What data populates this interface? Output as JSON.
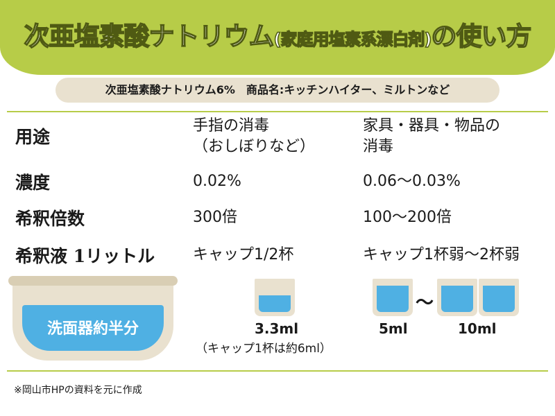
{
  "title": {
    "main": "次亜塩素酸ナトリウム",
    "paren": "(家庭用塩素系漂白剤)",
    "tail": "の使い方"
  },
  "subtitle": "次亜塩素酸ナトリウム6%　商品名:キッチンハイター、ミルトンなど",
  "rows": [
    {
      "label": "用途",
      "col1": "手指の消毒\n（おしぼりなど）",
      "col2": "家具・器具・物品の\n消毒"
    },
    {
      "label": "濃度",
      "col1": "0.02%",
      "col2": "0.06〜0.03%"
    },
    {
      "label": "希釈倍数",
      "col1": "300倍",
      "col2": "100〜200倍"
    },
    {
      "label": "希釈液 1リットル",
      "col1": "キャップ1/2杯",
      "col2": "キャップ1杯弱〜2杯弱"
    }
  ],
  "bowl_label": "洗面器約半分",
  "cup_half_label": "3.3ml",
  "cup_note": "（キャップ1杯は約6ml）",
  "cup_5_label": "5ml",
  "cup_tilde": "〜",
  "cup_10_label": "10ml",
  "footer": "※岡山市HPの資料を元に作成",
  "colors": {
    "accent": "#b7cc48",
    "water": "#4fb0e3",
    "beige": "#e9e1cf"
  }
}
